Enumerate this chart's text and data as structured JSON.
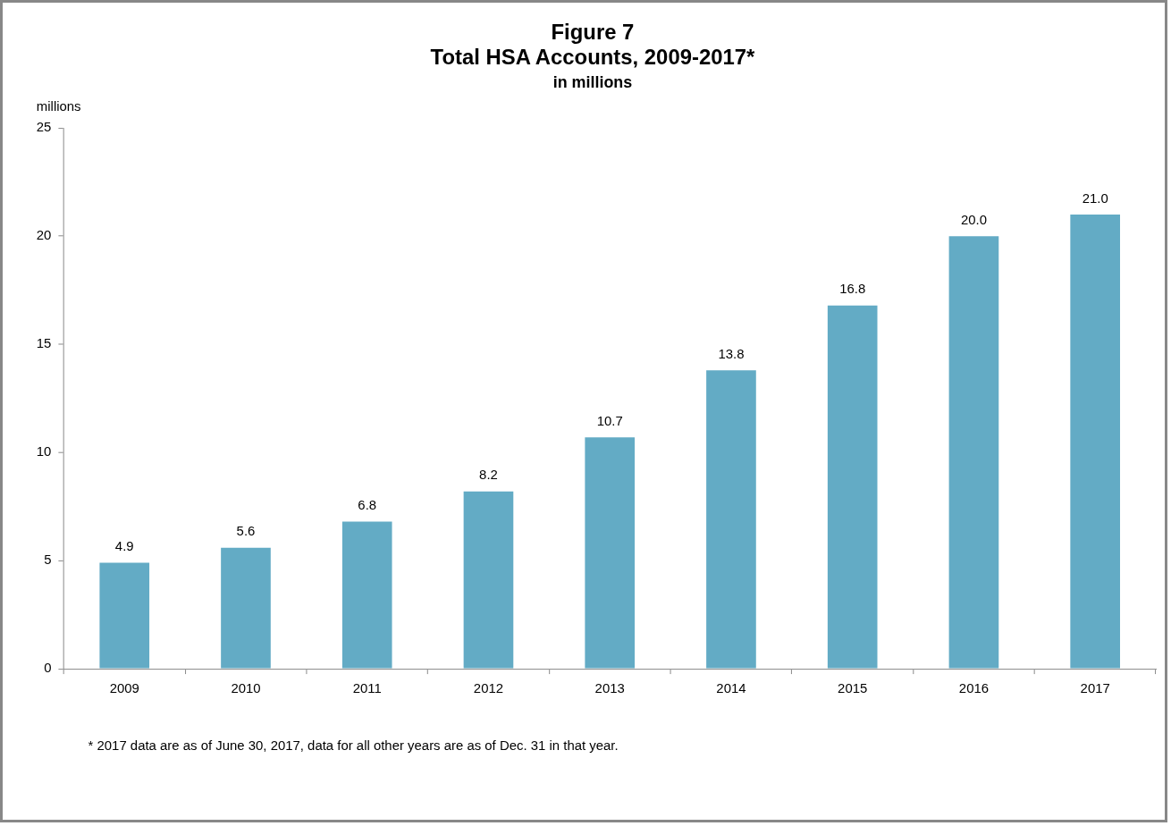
{
  "chart_data": {
    "type": "bar",
    "title": "Figure 7\nTotal HSA Accounts, 2009-2017*",
    "subtitle": "in millions",
    "ylabel": "millions",
    "categories": [
      "2009",
      "2010",
      "2011",
      "2012",
      "2013",
      "2014",
      "2015",
      "2016",
      "2017"
    ],
    "values": [
      4.9,
      5.6,
      6.8,
      8.2,
      10.7,
      13.8,
      16.8,
      20.0,
      21.0
    ],
    "value_labels": [
      "4.9",
      "5.6",
      "6.8",
      "8.2",
      "10.7",
      "13.8",
      "16.8",
      "20.0",
      "21.0"
    ],
    "color": "#63abc5",
    "ylim": [
      0,
      25
    ],
    "yticks": [
      0,
      5,
      10,
      15,
      20,
      25
    ],
    "grid": false,
    "legend": false,
    "annotations": [
      "* 2017 data are as of June 30, 2017, data for all other years are as of Dec. 31 in that year."
    ]
  }
}
